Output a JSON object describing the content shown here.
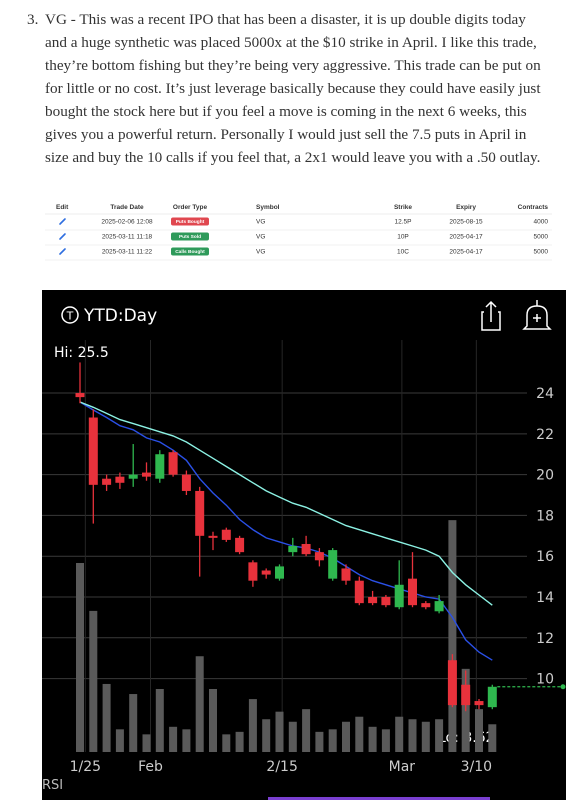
{
  "paragraph": {
    "number": "3.",
    "lines": [
      "VG - This was a recent IPO that has been a disaster, it is up double digits today",
      "and a huge synthetic was placed 5000x at the $10 strike in April. I like this trade,",
      "they’re bottom fishing but they’re being very aggressive. This trade can be put on",
      "for little or no cost. It’s just leverage basically because they could have easily just",
      "bought the stock here but if you feel a move is coming in the next 6 weeks, this",
      "gives you a powerful return. Personally I would just sell the 7.5 puts in April in",
      "size and buy the 10 calls if you feel that, a 2x1 would leave you with a .50 outlay."
    ]
  },
  "table": {
    "headers": [
      "Edit",
      "Trade Date",
      "Order Type",
      "Symbol",
      "Strike",
      "Expiry",
      "Contracts"
    ],
    "rows": [
      {
        "trade_date": "2025-02-06 12:08",
        "order_type": "Puts Bought",
        "order_color": "#e0474f",
        "symbol": "VG",
        "strike": "12.5P",
        "expiry": "2025-08-15",
        "contracts": "4000"
      },
      {
        "trade_date": "2025-03-11 11:18",
        "order_type": "Puts Sold",
        "order_color": "#2e9a5a",
        "symbol": "VG",
        "strike": "10P",
        "expiry": "2025-04-17",
        "contracts": "5000"
      },
      {
        "trade_date": "2025-03-11 11:22",
        "order_type": "Calls Bought",
        "order_color": "#2e9a5a",
        "symbol": "VG",
        "strike": "10C",
        "expiry": "2025-04-17",
        "contracts": "5000"
      }
    ]
  },
  "chart_data": {
    "type": "candlestick",
    "title": "YTD:Day",
    "annotations": [
      "Hi: 25.5",
      "Lo: 8.62"
    ],
    "lower_panel": "RSI",
    "up_color": "#2fb84f",
    "down_color": "#e8323c",
    "volume_color": "#5a5a5a",
    "open": [
      24.0,
      22.8,
      19.8,
      19.9,
      19.8,
      20.1,
      19.8,
      21.1,
      20.0,
      19.2,
      17.0,
      17.3,
      16.9,
      15.7,
      15.3,
      14.9,
      16.2,
      16.6,
      16.2,
      14.9,
      15.4,
      14.8,
      14.0,
      14.0,
      13.5,
      14.9,
      13.7,
      13.3,
      10.9,
      9.7,
      8.9,
      8.6
    ],
    "high": [
      25.5,
      23.2,
      20.0,
      20.1,
      21.5,
      20.6,
      21.2,
      21.2,
      20.2,
      19.4,
      17.2,
      17.4,
      17.0,
      15.8,
      15.4,
      15.6,
      16.9,
      17.0,
      16.4,
      16.4,
      15.6,
      15.0,
      14.3,
      14.1,
      15.8,
      16.2,
      13.8,
      14.1,
      11.2,
      10.4,
      9.0,
      9.7
    ],
    "low": [
      23.5,
      17.6,
      19.2,
      19.3,
      19.4,
      19.7,
      19.6,
      19.9,
      19.0,
      15.0,
      16.3,
      16.7,
      16.1,
      14.5,
      14.9,
      14.8,
      16.0,
      16.0,
      15.5,
      14.8,
      14.6,
      13.6,
      13.6,
      13.5,
      13.4,
      13.5,
      13.4,
      13.2,
      8.6,
      8.4,
      8.5,
      8.5
    ],
    "close": [
      23.8,
      19.5,
      19.5,
      19.6,
      20.0,
      19.9,
      21.0,
      20.0,
      19.2,
      17.0,
      16.9,
      16.8,
      16.2,
      14.8,
      15.1,
      15.5,
      16.5,
      16.1,
      15.8,
      16.3,
      14.8,
      13.7,
      13.7,
      13.6,
      14.6,
      13.6,
      13.5,
      13.8,
      8.7,
      8.7,
      8.7,
      9.6
    ],
    "volume": [
      75,
      56,
      27,
      9,
      23,
      7,
      25,
      10,
      9,
      38,
      25,
      7,
      8,
      21,
      13,
      16,
      12,
      17,
      8,
      9,
      12,
      14,
      10,
      9,
      14,
      13,
      12,
      13,
      92,
      33,
      17,
      11
    ],
    "vlim": [
      0,
      100
    ],
    "series": [
      {
        "color": "#2a50e6",
        "values": [
          23.56,
          23.17,
          22.8,
          22.4,
          22.2,
          21.8,
          21.6,
          21.2,
          20.7,
          19.8,
          19.1,
          18.5,
          17.8,
          17.3,
          16.9,
          16.7,
          16.5,
          16.4,
          16.2,
          15.9,
          15.5,
          15.1,
          14.8,
          14.6,
          14.4,
          14.2,
          14.0,
          13.9,
          13.0,
          11.9,
          11.3,
          10.9
        ]
      },
      {
        "color": "#8cf2e4",
        "values": [
          23.56,
          23.3,
          23.0,
          22.7,
          22.5,
          22.3,
          22.1,
          21.9,
          21.6,
          21.2,
          20.8,
          20.4,
          20.0,
          19.6,
          19.2,
          18.9,
          18.6,
          18.4,
          18.1,
          17.8,
          17.5,
          17.3,
          17.1,
          16.9,
          16.7,
          16.5,
          16.3,
          16.0,
          15.2,
          14.6,
          14.1,
          13.6
        ]
      }
    ],
    "ylim": [
      6.5,
      25.6
    ],
    "yticks": [
      10,
      12,
      14,
      16,
      18,
      20,
      22,
      24
    ],
    "xticks": [
      {
        "value": 0.4,
        "label": "1/25"
      },
      {
        "value": 5.3,
        "label": "Feb"
      },
      {
        "value": 15.2,
        "label": "2/15"
      },
      {
        "value": 24.2,
        "label": "Mar"
      },
      {
        "value": 29.8,
        "label": "3/10"
      }
    ],
    "grid": true
  }
}
